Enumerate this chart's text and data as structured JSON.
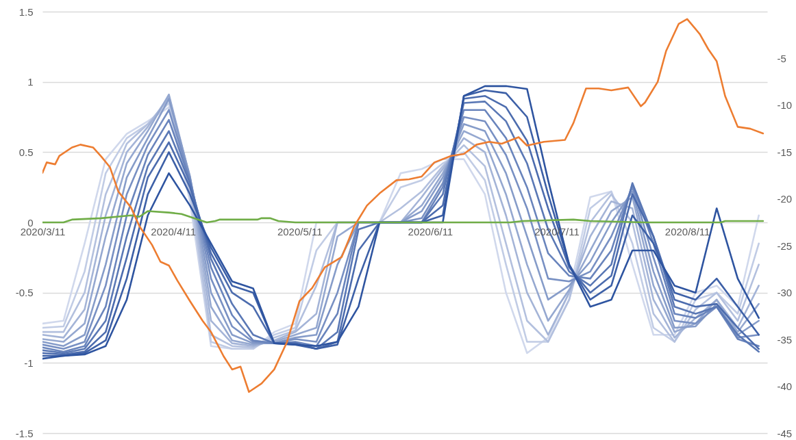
{
  "chart_data": {
    "type": "line",
    "x": [
      "2020-03-11",
      "2020-03-16",
      "2020-03-21",
      "2020-03-26",
      "2020-03-31",
      "2020-04-05",
      "2020-04-10",
      "2020-04-15",
      "2020-04-20",
      "2020-04-25",
      "2020-04-30",
      "2020-05-05",
      "2020-05-10",
      "2020-05-15",
      "2020-05-20",
      "2020-05-25",
      "2020-05-30",
      "2020-06-04",
      "2020-06-09",
      "2020-06-14",
      "2020-06-19",
      "2020-06-24",
      "2020-06-29",
      "2020-07-04",
      "2020-07-09",
      "2020-07-14",
      "2020-07-19",
      "2020-07-24",
      "2020-07-29",
      "2020-08-03",
      "2020-08-08",
      "2020-08-13",
      "2020-08-18",
      "2020-08-23",
      "2020-08-28"
    ],
    "xlim": [
      "2020-03-11",
      "2020-08-30"
    ],
    "xticks": [
      {
        "value": "2020-03-11",
        "label": "2020/3/11"
      },
      {
        "value": "2020-04-11",
        "label": "2020/4/11"
      },
      {
        "value": "2020-05-11",
        "label": "2020/5/11"
      },
      {
        "value": "2020-06-11",
        "label": "2020/6/11"
      },
      {
        "value": "2020-07-11",
        "label": "2020/7/11"
      },
      {
        "value": "2020-08-11",
        "label": "2020/8/11"
      }
    ],
    "ylim": [
      -1.5,
      1.5
    ],
    "yticks": [
      -1.5,
      -1,
      -0.5,
      0,
      0.5,
      1,
      1.5
    ],
    "y2lim": [
      -45,
      0
    ],
    "y2ticks": [
      -45,
      -40,
      -35,
      -30,
      -25,
      -20,
      -15,
      -10,
      -5
    ],
    "grid": "y",
    "series": [
      {
        "color": "#d0d8ec",
        "values": [
          -0.72,
          -0.7,
          -0.15,
          0.45,
          0.63,
          0.72,
          0.82,
          0.15,
          -0.88,
          -0.9,
          -0.9,
          -0.78,
          -0.72,
          0,
          0,
          0,
          0,
          0.35,
          0.38,
          0.45,
          0.45,
          0.2,
          -0.5,
          -0.93,
          -0.82,
          -0.5,
          0.18,
          0.22,
          -0.3,
          -0.8,
          -0.8,
          -0.5,
          -0.45,
          -0.6,
          0.05
        ]
      },
      {
        "color": "#c1cce5",
        "values": [
          -0.75,
          -0.74,
          -0.35,
          0.35,
          0.6,
          0.7,
          0.85,
          0.2,
          -0.85,
          -0.9,
          -0.9,
          -0.8,
          -0.75,
          -0.2,
          0,
          0,
          0,
          0.25,
          0.3,
          0.42,
          0.5,
          0.3,
          -0.3,
          -0.85,
          -0.85,
          -0.55,
          0.1,
          0.22,
          -0.15,
          -0.75,
          -0.85,
          -0.55,
          -0.5,
          -0.65,
          -0.15
        ]
      },
      {
        "color": "#b3c0de",
        "values": [
          -0.78,
          -0.78,
          -0.5,
          0.2,
          0.56,
          0.7,
          0.88,
          0.25,
          -0.8,
          -0.88,
          -0.89,
          -0.82,
          -0.77,
          -0.45,
          0,
          0,
          0,
          0.1,
          0.22,
          0.4,
          0.55,
          0.4,
          -0.15,
          -0.7,
          -0.85,
          -0.55,
          0,
          0.2,
          0,
          -0.65,
          -0.85,
          -0.62,
          -0.5,
          -0.7,
          -0.3
        ]
      },
      {
        "color": "#a4b4d7",
        "values": [
          -0.8,
          -0.82,
          -0.62,
          0.05,
          0.5,
          0.68,
          0.9,
          0.3,
          -0.7,
          -0.86,
          -0.88,
          -0.84,
          -0.78,
          -0.65,
          0,
          0,
          0,
          0,
          0.18,
          0.38,
          0.6,
          0.5,
          0.05,
          -0.5,
          -0.8,
          -0.5,
          -0.1,
          0.15,
          0.1,
          -0.55,
          -0.82,
          -0.68,
          -0.55,
          -0.75,
          -0.45
        ]
      },
      {
        "color": "#95a8d0",
        "values": [
          -0.83,
          -0.85,
          -0.72,
          -0.1,
          0.42,
          0.65,
          0.91,
          0.32,
          -0.6,
          -0.84,
          -0.87,
          -0.85,
          -0.8,
          -0.75,
          -0.1,
          0,
          0,
          0,
          0.12,
          0.35,
          0.65,
          0.58,
          0.2,
          -0.3,
          -0.7,
          -0.48,
          -0.2,
          0.08,
          0.18,
          -0.45,
          -0.78,
          -0.72,
          -0.55,
          -0.78,
          -0.58
        ]
      },
      {
        "color": "#869cc9",
        "values": [
          -0.85,
          -0.88,
          -0.8,
          -0.3,
          0.32,
          0.6,
          0.88,
          0.33,
          -0.5,
          -0.8,
          -0.86,
          -0.86,
          -0.82,
          -0.8,
          -0.3,
          0,
          0,
          0,
          0.08,
          0.32,
          0.7,
          0.65,
          0.35,
          -0.1,
          -0.55,
          -0.45,
          -0.28,
          0,
          0.22,
          -0.35,
          -0.75,
          -0.74,
          -0.58,
          -0.8,
          -0.7
        ]
      },
      {
        "color": "#7890c3",
        "values": [
          -0.87,
          -0.9,
          -0.85,
          -0.45,
          0.2,
          0.55,
          0.8,
          0.32,
          -0.4,
          -0.74,
          -0.85,
          -0.86,
          -0.83,
          -0.85,
          -0.5,
          0,
          0,
          0,
          0.03,
          0.28,
          0.75,
          0.72,
          0.48,
          0.1,
          -0.4,
          -0.42,
          -0.35,
          -0.1,
          0.25,
          -0.25,
          -0.7,
          -0.72,
          -0.6,
          -0.82,
          -0.8
        ]
      },
      {
        "color": "#6984bc",
        "values": [
          -0.89,
          -0.92,
          -0.88,
          -0.6,
          0.05,
          0.48,
          0.73,
          0.3,
          -0.32,
          -0.66,
          -0.84,
          -0.86,
          -0.85,
          -0.88,
          -0.65,
          0,
          0,
          0,
          0,
          0.25,
          0.8,
          0.8,
          0.6,
          0.25,
          -0.22,
          -0.38,
          -0.4,
          -0.2,
          0.27,
          -0.15,
          -0.65,
          -0.68,
          -0.6,
          -0.83,
          -0.88
        ]
      },
      {
        "color": "#5a78b5",
        "values": [
          -0.91,
          -0.93,
          -0.9,
          -0.7,
          -0.1,
          0.4,
          0.65,
          0.28,
          -0.26,
          -0.58,
          -0.8,
          -0.86,
          -0.86,
          -0.9,
          -0.78,
          -0.05,
          0,
          0,
          0,
          0.2,
          0.85,
          0.86,
          0.72,
          0.42,
          -0.05,
          -0.35,
          -0.45,
          -0.3,
          0.28,
          -0.1,
          -0.6,
          -0.65,
          -0.6,
          -0.8,
          -0.92
        ]
      },
      {
        "color": "#4c6cae",
        "values": [
          -0.93,
          -0.94,
          -0.92,
          -0.78,
          -0.25,
          0.32,
          0.57,
          0.25,
          -0.22,
          -0.5,
          -0.6,
          -0.86,
          -0.86,
          -0.9,
          -0.85,
          -0.2,
          0,
          0,
          0,
          0.12,
          0.88,
          0.9,
          0.82,
          0.58,
          0.1,
          -0.32,
          -0.5,
          -0.38,
          0.2,
          -0.1,
          -0.55,
          -0.6,
          -0.58,
          -0.75,
          -0.9
        ]
      },
      {
        "color": "#3d60a7",
        "values": [
          -0.95,
          -0.95,
          -0.93,
          -0.84,
          -0.4,
          0.2,
          0.5,
          0.2,
          -0.18,
          -0.45,
          -0.5,
          -0.86,
          -0.87,
          -0.9,
          -0.87,
          -0.4,
          0,
          0,
          0,
          0.05,
          0.9,
          0.94,
          0.92,
          0.75,
          0.2,
          -0.3,
          -0.55,
          -0.45,
          0.05,
          -0.15,
          -0.5,
          -0.55,
          -0.4,
          -0.6,
          -0.8
        ]
      },
      {
        "color": "#2e54a0",
        "values": [
          -0.97,
          -0.95,
          -0.94,
          -0.88,
          -0.55,
          0.05,
          0.35,
          0.12,
          -0.15,
          -0.42,
          -0.47,
          -0.86,
          -0.87,
          -0.88,
          -0.85,
          -0.6,
          0,
          0,
          0,
          0,
          0.9,
          0.97,
          0.97,
          0.95,
          0.3,
          -0.3,
          -0.6,
          -0.55,
          -0.2,
          -0.2,
          -0.45,
          -0.5,
          0.1,
          -0.4,
          -0.68
        ]
      },
      {
        "color": "#70ad47",
        "x": [
          "2020-03-11",
          "2020-03-16",
          "2020-03-18",
          "2020-03-25",
          "2020-04-01",
          "2020-04-03",
          "2020-04-05",
          "2020-04-10",
          "2020-04-13",
          "2020-04-17",
          "2020-04-19",
          "2020-04-21",
          "2020-04-22",
          "2020-05-01",
          "2020-05-02",
          "2020-05-04",
          "2020-05-06",
          "2020-05-10",
          "2020-06-30",
          "2020-07-03",
          "2020-07-15",
          "2020-07-19",
          "2020-08-01",
          "2020-08-19",
          "2020-08-20",
          "2020-08-29"
        ],
        "values": [
          0,
          0,
          0.02,
          0.03,
          0.05,
          0.04,
          0.08,
          0.07,
          0.06,
          0.02,
          0,
          0.01,
          0.02,
          0.02,
          0.03,
          0.03,
          0.01,
          0,
          0,
          0.01,
          0.02,
          0.01,
          0,
          0,
          0.01,
          0.01
        ]
      },
      {
        "color": "#ed7d31",
        "axis": "y2",
        "x": [
          "2020-03-11",
          "2020-03-12",
          "2020-03-14",
          "2020-03-15",
          "2020-03-18",
          "2020-03-20",
          "2020-03-23",
          "2020-03-25",
          "2020-03-27",
          "2020-03-29",
          "2020-04-01",
          "2020-04-03",
          "2020-04-06",
          "2020-04-08",
          "2020-04-10",
          "2020-04-12",
          "2020-04-15",
          "2020-04-18",
          "2020-04-20",
          "2020-04-23",
          "2020-04-25",
          "2020-04-27",
          "2020-04-29",
          "2020-05-02",
          "2020-05-05",
          "2020-05-08",
          "2020-05-11",
          "2020-05-14",
          "2020-05-17",
          "2020-05-21",
          "2020-05-24",
          "2020-05-27",
          "2020-05-30",
          "2020-06-03",
          "2020-06-06",
          "2020-06-09",
          "2020-06-12",
          "2020-06-16",
          "2020-06-19",
          "2020-06-22",
          "2020-06-25",
          "2020-06-28",
          "2020-07-02",
          "2020-07-04",
          "2020-07-08",
          "2020-07-13",
          "2020-07-15",
          "2020-07-18",
          "2020-07-21",
          "2020-07-24",
          "2020-07-28",
          "2020-07-31",
          "2020-08-01",
          "2020-08-04",
          "2020-08-06",
          "2020-08-09",
          "2020-08-11",
          "2020-08-14",
          "2020-08-16",
          "2020-08-18",
          "2020-08-20",
          "2020-08-23",
          "2020-08-26",
          "2020-08-29"
        ],
        "values": [
          -17.2,
          -16.1,
          -16.3,
          -15.4,
          -14.5,
          -14.2,
          -14.5,
          -15.5,
          -16.6,
          -19.2,
          -20.9,
          -22.9,
          -24.9,
          -26.7,
          -27.1,
          -28.7,
          -30.9,
          -33.0,
          -34.2,
          -36.8,
          -38.2,
          -37.9,
          -40.6,
          -39.7,
          -38.2,
          -35.3,
          -30.9,
          -29.5,
          -27.3,
          -26.2,
          -22.9,
          -20.7,
          -19.4,
          -18.0,
          -17.9,
          -17.6,
          -16.1,
          -15.4,
          -15.2,
          -14.2,
          -13.9,
          -14.1,
          -13.4,
          -14.3,
          -13.9,
          -13.7,
          -11.9,
          -8.2,
          -8.2,
          -8.4,
          -8.1,
          -10.1,
          -9.7,
          -7.5,
          -4.2,
          -1.3,
          -0.8,
          -2.4,
          -4.0,
          -5.3,
          -9.0,
          -12.3,
          -12.5,
          -13.0
        ]
      }
    ]
  }
}
